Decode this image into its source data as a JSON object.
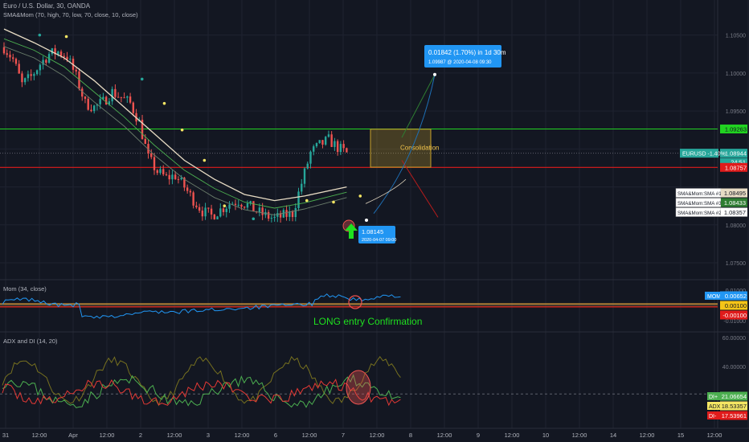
{
  "header": {
    "symbol_title": "Euro / U.S. Dollar, 30, OANDA",
    "indicator_title": "SMA&Mom (70, high, 70, low, 70, close, 10, close)"
  },
  "colors": {
    "background": "#131722",
    "grid": "#1f2330",
    "up": "#26a69a",
    "down": "#ef5350",
    "green_line": "#21d321",
    "red_line": "#e01b1b",
    "sma_high": "#4caf50",
    "sma_low": "#6b7d6b",
    "sma_close": "#e8dcc4",
    "mom_line": "#2196f3",
    "di_plus": "#4caf50",
    "di_minus": "#e53935",
    "adx": "#76701f",
    "box": "#c8a12a",
    "callout": "#2196f3",
    "annotation_green": "#1fe01f"
  },
  "chart_data": [
    {
      "type": "candlestick",
      "title": "Euro / U.S. Dollar, 30, OANDA",
      "ylim": [
        1.0731,
        1.1075
      ],
      "y_ticks": [
        "1.10500",
        "1.10000",
        "1.09500",
        "1.08000",
        "1.07500"
      ],
      "x_ticks": [
        "31",
        "12:00",
        "Apr",
        "12:00",
        "2",
        "12:00",
        "3",
        "12:00",
        "6",
        "12:00",
        "7",
        "12:00",
        "8",
        "12:00",
        "9",
        "12:00",
        "10",
        "12:00",
        "14",
        "12:00",
        "15",
        "12:00"
      ],
      "price_path": [
        {
          "t": 0,
          "v": 1.1034
        },
        {
          "t": 3,
          "v": 1.1018
        },
        {
          "t": 6,
          "v": 1.0985
        },
        {
          "t": 9,
          "v": 1.0995
        },
        {
          "t": 12,
          "v": 1.1012
        },
        {
          "t": 15,
          "v": 1.1025
        },
        {
          "t": 18,
          "v": 1.1028
        },
        {
          "t": 21,
          "v": 1.1022
        },
        {
          "t": 24,
          "v": 1.0995
        },
        {
          "t": 27,
          "v": 1.096
        },
        {
          "t": 30,
          "v": 1.0955
        },
        {
          "t": 33,
          "v": 1.0962
        },
        {
          "t": 36,
          "v": 1.0975
        },
        {
          "t": 39,
          "v": 1.0968
        },
        {
          "t": 42,
          "v": 1.096
        },
        {
          "t": 45,
          "v": 1.0935
        },
        {
          "t": 48,
          "v": 1.0888
        },
        {
          "t": 51,
          "v": 1.087
        },
        {
          "t": 54,
          "v": 1.0862
        },
        {
          "t": 57,
          "v": 1.0865
        },
        {
          "t": 60,
          "v": 1.085
        },
        {
          "t": 63,
          "v": 1.0833
        },
        {
          "t": 66,
          "v": 1.0818
        },
        {
          "t": 69,
          "v": 1.0812
        },
        {
          "t": 72,
          "v": 1.082
        },
        {
          "t": 75,
          "v": 1.0828
        },
        {
          "t": 78,
          "v": 1.0832
        },
        {
          "t": 81,
          "v": 1.0826
        },
        {
          "t": 84,
          "v": 1.0818
        },
        {
          "t": 87,
          "v": 1.0812
        },
        {
          "t": 90,
          "v": 1.0808
        },
        {
          "t": 93,
          "v": 1.0812
        },
        {
          "t": 96,
          "v": 1.0815
        },
        {
          "t": 99,
          "v": 1.0855
        },
        {
          "t": 102,
          "v": 1.0895
        },
        {
          "t": 105,
          "v": 1.0905
        },
        {
          "t": 108,
          "v": 1.0912
        },
        {
          "t": 111,
          "v": 1.0902
        },
        {
          "t": 114,
          "v": 1.0894
        }
      ],
      "sma": [
        {
          "name": "SMA&Mom: SMA #1",
          "value": 1.08495,
          "path": [
            [
              0,
              1.1058
            ],
            [
              10,
              1.104
            ],
            [
              20,
              1.102
            ],
            [
              30,
              1.099
            ],
            [
              40,
              1.0955
            ],
            [
              50,
              1.092
            ],
            [
              60,
              1.0885
            ],
            [
              70,
              1.086
            ],
            [
              80,
              1.084
            ],
            [
              90,
              1.0832
            ],
            [
              100,
              1.0838
            ],
            [
              114,
              1.085
            ]
          ]
        },
        {
          "name": "SMA&Mom: SMA #3",
          "value": 1.08433,
          "path": [
            [
              0,
              1.1045
            ],
            [
              10,
              1.103
            ],
            [
              20,
              1.1008
            ],
            [
              30,
              1.0975
            ],
            [
              40,
              1.0942
            ],
            [
              50,
              1.0905
            ],
            [
              60,
              1.0872
            ],
            [
              70,
              1.0848
            ],
            [
              80,
              1.083
            ],
            [
              90,
              1.0822
            ],
            [
              100,
              1.0829
            ],
            [
              114,
              1.0843
            ]
          ]
        },
        {
          "name": "SMA&Mom: SMA #2",
          "value": 1.08357,
          "path": [
            [
              0,
              1.1035
            ],
            [
              10,
              1.102
            ],
            [
              20,
              1.0996
            ],
            [
              30,
              1.0962
            ],
            [
              40,
              1.093
            ],
            [
              50,
              1.0892
            ],
            [
              60,
              1.086
            ],
            [
              70,
              1.0836
            ],
            [
              80,
              1.082
            ],
            [
              90,
              1.0813
            ],
            [
              100,
              1.0821
            ],
            [
              114,
              1.0836
            ]
          ]
        }
      ],
      "levels": {
        "resistance": "1.09263",
        "current": "1.08944",
        "support": "1.08757"
      },
      "price_tag": {
        "label": "EURUSD -1.40%",
        "value": "1.08944",
        "countdown": "24:51"
      },
      "annotations": {
        "box_label": "Consolidation",
        "target_line1": "0.01842 (1.70%) in 1d 30m",
        "target_line2": "1.09987 @ 2020-04-08  09:30",
        "entry_line1": "1.08145",
        "entry_line2": "2020-04-07 09:00",
        "entry_text": "LONG entry Confirmation"
      }
    },
    {
      "type": "line",
      "title": "Mom (34, close)",
      "series": [
        {
          "name": "MOM",
          "value": "0.00652"
        }
      ],
      "y_ticks": [
        "0.01000",
        "-0.01000"
      ],
      "levels": {
        "upper": "0.00100",
        "lower": "-0.00100"
      }
    },
    {
      "type": "line",
      "title": "ADX and DI (14, 20)",
      "y_ticks": [
        "60.00000",
        "40.00000",
        "20.00000"
      ],
      "series": [
        {
          "name": "DI+",
          "value": "21.06654"
        },
        {
          "name": "ADX",
          "value": "18.53357"
        },
        {
          "name": "DI-",
          "value": "17.53961"
        }
      ]
    }
  ]
}
